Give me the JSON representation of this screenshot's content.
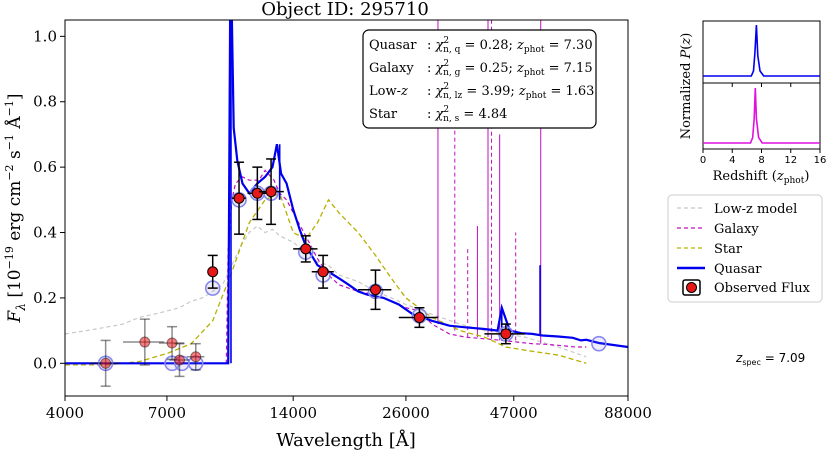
{
  "chart_data": {
    "type": "line",
    "title": "Object ID: 295710",
    "xlabel": "Wavelength [Å]",
    "ylabel": "F_λ [10^-19 erg cm^-2 s^-1 Å^-1]",
    "xscale": "log",
    "xlim": [
      4000,
      88000
    ],
    "ylim": [
      -0.1,
      1.05
    ],
    "xticks": [
      4000,
      7000,
      14000,
      26000,
      47000,
      88000
    ],
    "xtick_labels": [
      "4000",
      "7000",
      "14000",
      "26000",
      "47000",
      "88000"
    ],
    "yticks": [
      0.0,
      0.2,
      0.4,
      0.6,
      0.8,
      1.0
    ],
    "ytick_labels": [
      "0.0",
      "0.2",
      "0.4",
      "0.6",
      "0.8",
      "1.0"
    ],
    "fit_box": {
      "rows": [
        {
          "name": "Quasar",
          "sub": "n, q",
          "chi2": "0.28",
          "zphot": "7.30"
        },
        {
          "name": "Galaxy",
          "sub": "n, g",
          "chi2": "0.25",
          "zphot": "7.15"
        },
        {
          "name": "Low-z",
          "sub": "n, lz",
          "chi2": "3.99",
          "zphot": "1.63"
        },
        {
          "name": "Star",
          "sub": "n, s",
          "chi2": "4.84",
          "zphot": ""
        }
      ]
    },
    "legend": {
      "position": "right",
      "entries": [
        "Low-z model",
        "Galaxy",
        "Star",
        "Quasar",
        "Observed Flux"
      ]
    },
    "colors": {
      "lowz": "#c8c8c8",
      "galaxy": "#c010c0",
      "star": "#b8b000",
      "quasar": "#0000ee",
      "point_fill": "#e81818",
      "model_marker": "#8888ee"
    },
    "series": [
      {
        "name": "Quasar",
        "x": [
          4000,
          9800,
          9900,
          10000,
          10100,
          10300,
          10600,
          11000,
          11500,
          12000,
          12500,
          12800,
          13100,
          13500,
          14000,
          14500,
          15000,
          15500,
          16000,
          17000,
          18000,
          19000,
          20000,
          21000,
          22000,
          23000,
          25000,
          27000,
          30000,
          33000,
          36000,
          40000,
          43000,
          44000,
          46000,
          49000,
          52000,
          55000,
          60000,
          65000,
          68000,
          70000,
          75000,
          88000
        ],
        "y": [
          0.0,
          0.0,
          1.05,
          1.05,
          0.72,
          0.62,
          0.55,
          0.52,
          0.55,
          0.57,
          0.6,
          0.67,
          0.58,
          0.55,
          0.47,
          0.41,
          0.36,
          0.33,
          0.3,
          0.28,
          0.26,
          0.24,
          0.22,
          0.21,
          0.205,
          0.2,
          0.18,
          0.15,
          0.13,
          0.115,
          0.11,
          0.105,
          0.1,
          0.17,
          0.1,
          0.092,
          0.09,
          0.085,
          0.082,
          0.078,
          0.07,
          0.072,
          0.062,
          0.05
        ]
      },
      {
        "name": "Galaxy",
        "x": [
          4000,
          9700,
          9800,
          10000,
          10200,
          10600,
          11000,
          11600,
          12000,
          12600,
          13000,
          13500,
          14000,
          15000,
          16000,
          17000,
          18000,
          20000,
          22000,
          24000,
          26000,
          28000,
          30000,
          33000,
          36000,
          40000,
          44000,
          48000,
          52000,
          56000,
          60000,
          66000,
          70000
        ],
        "y": [
          0.0,
          0.0,
          0.35,
          0.5,
          0.55,
          0.57,
          0.56,
          0.56,
          0.59,
          0.56,
          0.52,
          0.5,
          0.46,
          0.39,
          0.32,
          0.27,
          0.24,
          0.22,
          0.21,
          0.19,
          0.17,
          0.16,
          0.12,
          0.09,
          0.08,
          0.075,
          0.07,
          0.065,
          0.06,
          0.058,
          0.055,
          0.05,
          0.05
        ]
      },
      {
        "name": "Star",
        "x": [
          4000,
          5000,
          6000,
          7000,
          8000,
          9000,
          10000,
          11000,
          12000,
          13000,
          14000,
          15000,
          16000,
          17000,
          18000,
          20000,
          22000,
          24000,
          26000,
          30000,
          35000,
          40000,
          45000,
          50000,
          60000,
          70000
        ],
        "y": [
          -0.005,
          -0.005,
          0.005,
          0.03,
          0.06,
          0.13,
          0.28,
          0.43,
          0.5,
          0.52,
          0.4,
          0.38,
          0.43,
          0.5,
          0.46,
          0.4,
          0.33,
          0.26,
          0.2,
          0.14,
          0.1,
          0.08,
          0.05,
          0.04,
          0.025,
          0.0
        ]
      },
      {
        "name": "Low-z model",
        "x": [
          4000,
          4500,
          5000,
          5500,
          6000,
          6500,
          7000,
          7500,
          8000,
          8500,
          9000,
          9500,
          10000,
          10500,
          11000,
          11500,
          12000,
          12500,
          13000,
          14000,
          15000,
          16000,
          17000,
          18000,
          20000,
          22000,
          24000,
          26000,
          30000,
          35000,
          40000,
          45000,
          50000,
          60000,
          70000
        ],
        "y": [
          0.09,
          0.1,
          0.11,
          0.12,
          0.14,
          0.15,
          0.16,
          0.17,
          0.19,
          0.2,
          0.22,
          0.24,
          0.3,
          0.36,
          0.4,
          0.42,
          0.4,
          0.41,
          0.39,
          0.37,
          0.34,
          0.31,
          0.3,
          0.27,
          0.25,
          0.22,
          0.2,
          0.18,
          0.15,
          0.12,
          0.1,
          0.09,
          0.08,
          0.05,
          0.02
        ]
      },
      {
        "name": "Observed Flux",
        "x": [
          5000,
          6200,
          7200,
          7500,
          8200,
          9000,
          10400,
          11500,
          12400,
          15000,
          16500,
          22000,
          28000,
          45000
        ],
        "y": [
          0.0,
          0.065,
          0.062,
          0.01,
          0.02,
          0.28,
          0.505,
          0.52,
          0.525,
          0.35,
          0.28,
          0.225,
          0.14,
          0.09
        ],
        "yerr": [
          0.07,
          0.07,
          0.05,
          0.05,
          0.04,
          0.05,
          0.11,
          0.08,
          0.1,
          0.04,
          0.05,
          0.06,
          0.03,
          0.03
        ],
        "xlo": [
          4600,
          5500,
          6700,
          7100,
          7800,
          8800,
          10000,
          10900,
          11600,
          14000,
          15500,
          20000,
          25000,
          40000
        ],
        "xhi": [
          5400,
          6900,
          7700,
          7900,
          8600,
          9200,
          10800,
          12100,
          13300,
          16000,
          17500,
          24000,
          31000,
          50000
        ]
      },
      {
        "name": "Quasar model photometry",
        "x": [
          5000,
          7200,
          7600,
          8200,
          9000,
          10400,
          11500,
          12400,
          15000,
          16500,
          22000,
          28000,
          45000,
          75000
        ],
        "y": [
          0.0,
          0.0,
          0.0,
          0.0,
          0.23,
          0.5,
          0.52,
          0.52,
          0.34,
          0.27,
          0.22,
          0.145,
          0.09,
          0.06
        ]
      }
    ],
    "inset": {
      "ylabel": "Normalized  P(z)",
      "xlabel": "Redshift (z_phot)",
      "xlim": [
        0,
        16
      ],
      "xticks": [
        0,
        4,
        8,
        12,
        16
      ],
      "xtick_labels": [
        "0",
        "4",
        "8",
        "12",
        "16"
      ],
      "quasar_pz": {
        "x": [
          0,
          6.6,
          6.9,
          7.1,
          7.3,
          7.5,
          7.8,
          8.3,
          16
        ],
        "y": [
          0.0,
          0.0,
          0.1,
          0.45,
          1.0,
          0.4,
          0.1,
          0.0,
          0.0
        ]
      },
      "galaxy_pz": {
        "x": [
          0,
          6.5,
          6.8,
          7.0,
          7.15,
          7.3,
          7.6,
          8.1,
          16
        ],
        "y": [
          0.0,
          0.0,
          0.1,
          0.45,
          1.0,
          0.45,
          0.1,
          0.0,
          0.0
        ]
      }
    },
    "zspec_label": "z_spec = 7.09"
  }
}
